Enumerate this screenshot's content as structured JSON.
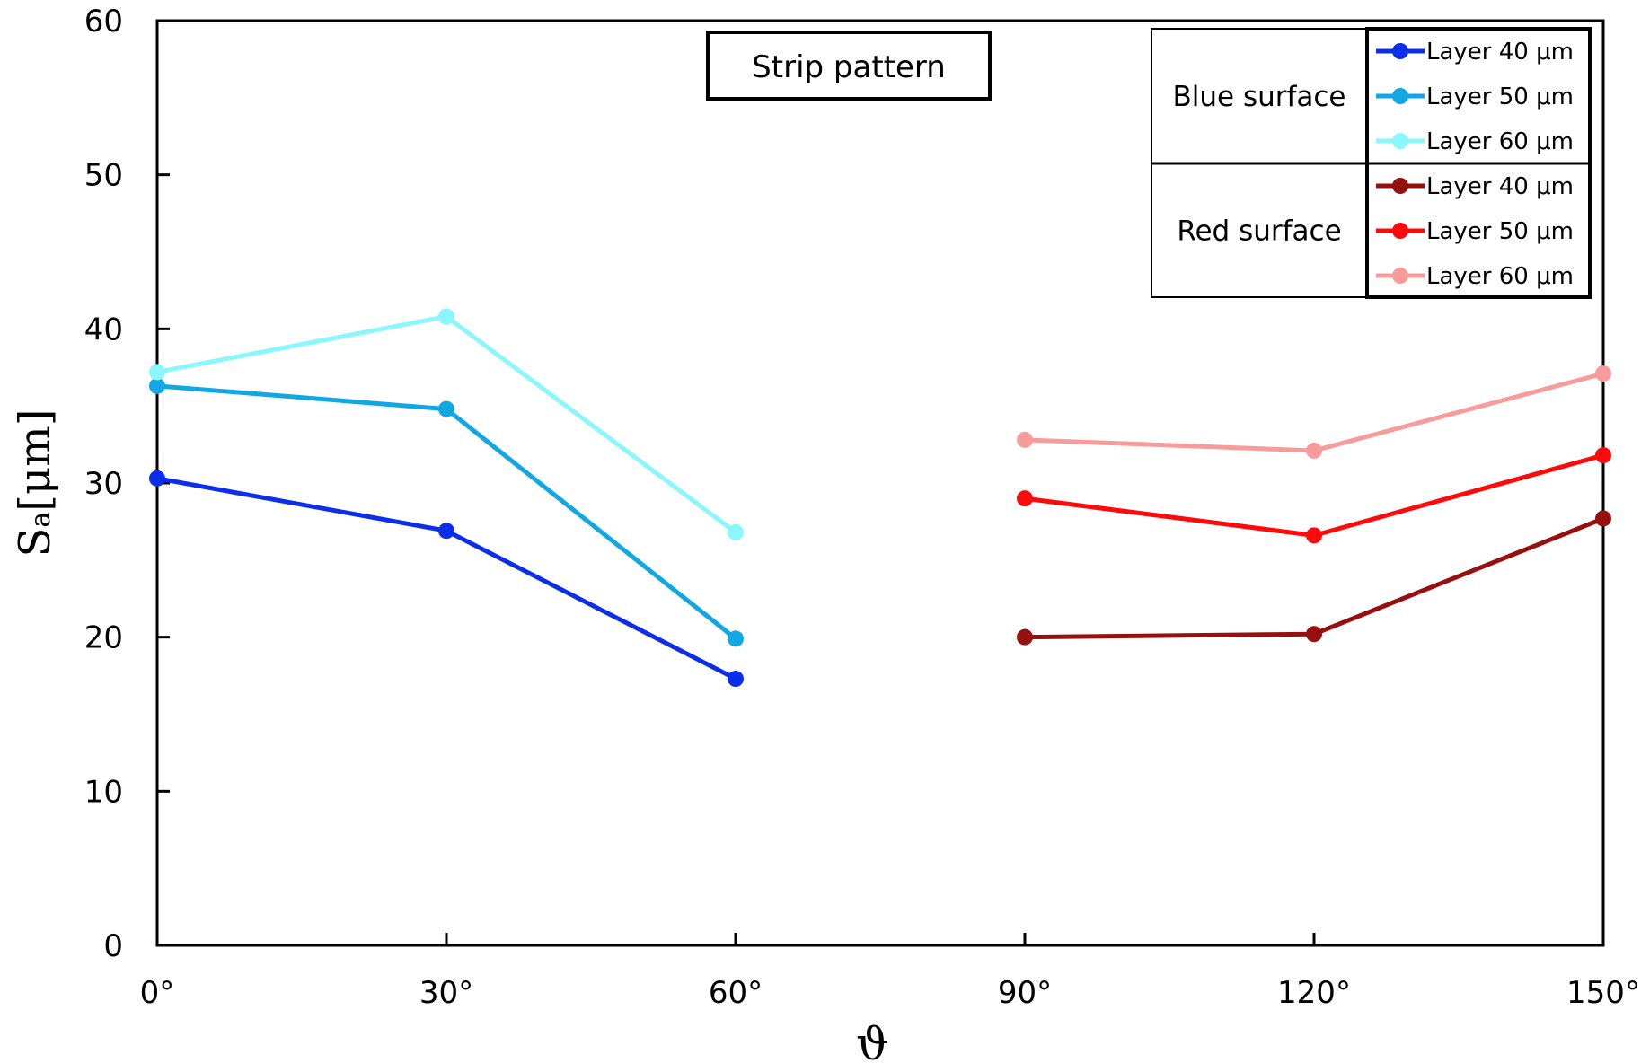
{
  "chart_data": {
    "type": "line",
    "title": "Strip pattern",
    "xlabel": "ϑ",
    "ylabel": {
      "main": "S",
      "sub": "a",
      "unit": "[μm]"
    },
    "categories": [
      "0°",
      "30°",
      "60°",
      "90°",
      "120°",
      "150°"
    ],
    "ylim": [
      0,
      60
    ],
    "yticks": [
      "0",
      "10",
      "20",
      "30",
      "40",
      "50",
      "60"
    ],
    "grid": false,
    "legend_position": "top-right",
    "legend_groups": [
      {
        "label": "Blue surface",
        "series": [
          0,
          1,
          2
        ]
      },
      {
        "label": "Red surface",
        "series": [
          3,
          4,
          5
        ]
      }
    ],
    "series": [
      {
        "name": "Layer 40 μm",
        "group": "Blue surface",
        "color": "#0B2EEB",
        "x": [
          0,
          1,
          2
        ],
        "values": [
          30.3,
          26.9,
          17.3
        ]
      },
      {
        "name": "Layer 50 μm",
        "group": "Blue surface",
        "color": "#10A7E3",
        "x": [
          0,
          1,
          2
        ],
        "values": [
          36.3,
          34.8,
          19.9
        ]
      },
      {
        "name": "Layer 60 μm",
        "group": "Blue surface",
        "color": "#8AF6FD",
        "x": [
          0,
          1,
          2
        ],
        "values": [
          37.2,
          40.8,
          26.8
        ]
      },
      {
        "name": "Layer 40 μm",
        "group": "Red surface",
        "color": "#961010",
        "x": [
          3,
          4,
          5
        ],
        "values": [
          20.0,
          20.2,
          27.7
        ]
      },
      {
        "name": "Layer 50 μm",
        "group": "Red surface",
        "color": "#FF0A0A",
        "x": [
          3,
          4,
          5
        ],
        "values": [
          29.0,
          26.6,
          31.8
        ]
      },
      {
        "name": "Layer 60 μm",
        "group": "Red surface",
        "color": "#F79C9A",
        "x": [
          3,
          4,
          5
        ],
        "values": [
          32.8,
          32.1,
          37.1
        ]
      }
    ]
  }
}
